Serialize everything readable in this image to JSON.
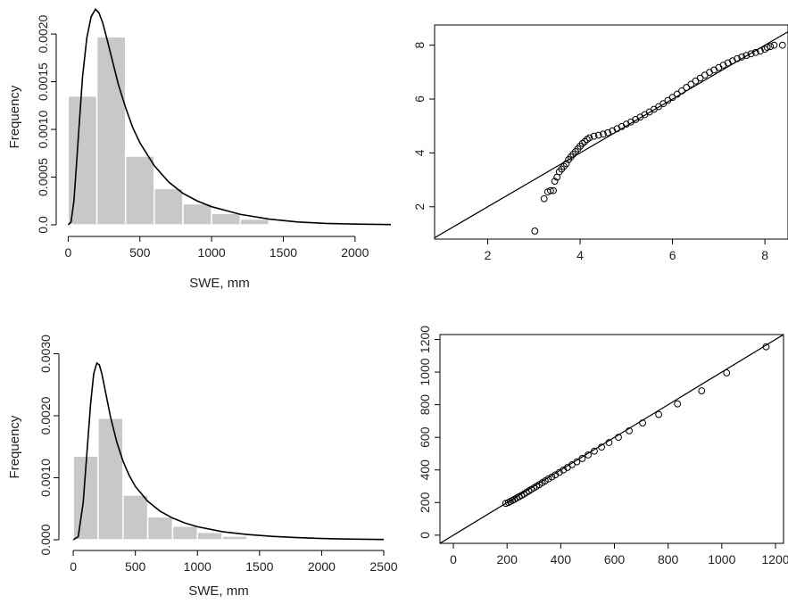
{
  "chart_data": [
    {
      "type": "bar",
      "panel": "top-left",
      "xlabel": "SWE, mm",
      "ylabel": "Frequency",
      "xlim": [
        -15,
        2250
      ],
      "ylim": [
        0,
        0.0023
      ],
      "xticks": [
        0,
        500,
        1000,
        1500,
        2000
      ],
      "yticks": [
        0.0,
        0.0005,
        0.001,
        0.0015,
        0.002
      ],
      "ytick_labels": [
        "0.0",
        "0.0005",
        "0.0010",
        "0.0015",
        "0.0020"
      ],
      "bins": [
        [
          0,
          200
        ],
        [
          200,
          400
        ],
        [
          400,
          600
        ],
        [
          600,
          800
        ],
        [
          800,
          1000
        ],
        [
          1000,
          1200
        ],
        [
          1200,
          1400
        ]
      ],
      "values": [
        0.00135,
        0.00197,
        0.00072,
        0.00038,
        0.00022,
        0.00012,
        6e-05
      ],
      "bar_color": "#c8c8c8",
      "curve": {
        "x": [
          0,
          20,
          40,
          60,
          80,
          100,
          130,
          160,
          190,
          215,
          240,
          270,
          300,
          350,
          400,
          450,
          500,
          600,
          700,
          800,
          900,
          1000,
          1200,
          1400,
          1600,
          1800,
          2000,
          2250
        ],
        "y": [
          0.0,
          3e-05,
          0.00025,
          0.00068,
          0.00112,
          0.00155,
          0.00196,
          0.00218,
          0.00226,
          0.00222,
          0.00212,
          0.00195,
          0.00177,
          0.00147,
          0.00123,
          0.00102,
          0.00086,
          0.00062,
          0.00045,
          0.00033,
          0.00025,
          0.00019,
          0.00011,
          6e-05,
          3e-05,
          1.5e-05,
          8e-06,
          3e-06
        ]
      }
    },
    {
      "type": "scatter",
      "panel": "top-right",
      "xlim": [
        0.85,
        8.5
      ],
      "ylim": [
        0.8,
        8.75
      ],
      "xticks": [
        2,
        4,
        6,
        8
      ],
      "yticks": [
        2,
        4,
        6,
        8
      ],
      "ref_line": [
        [
          0.85,
          0.85
        ],
        [
          8.6,
          8.6
        ]
      ],
      "points": [
        [
          3.02,
          1.1
        ],
        [
          3.22,
          2.3
        ],
        [
          3.3,
          2.55
        ],
        [
          3.36,
          2.6
        ],
        [
          3.42,
          2.6
        ],
        [
          3.45,
          2.95
        ],
        [
          3.5,
          3.1
        ],
        [
          3.55,
          3.3
        ],
        [
          3.6,
          3.4
        ],
        [
          3.65,
          3.5
        ],
        [
          3.7,
          3.6
        ],
        [
          3.75,
          3.75
        ],
        [
          3.8,
          3.85
        ],
        [
          3.85,
          3.95
        ],
        [
          3.9,
          4.05
        ],
        [
          3.95,
          4.15
        ],
        [
          4.0,
          4.25
        ],
        [
          4.05,
          4.35
        ],
        [
          4.1,
          4.42
        ],
        [
          4.15,
          4.5
        ],
        [
          4.2,
          4.56
        ],
        [
          4.3,
          4.62
        ],
        [
          4.4,
          4.66
        ],
        [
          4.5,
          4.7
        ],
        [
          4.6,
          4.75
        ],
        [
          4.7,
          4.82
        ],
        [
          4.8,
          4.9
        ],
        [
          4.9,
          4.98
        ],
        [
          5.0,
          5.07
        ],
        [
          5.1,
          5.15
        ],
        [
          5.2,
          5.24
        ],
        [
          5.3,
          5.33
        ],
        [
          5.4,
          5.42
        ],
        [
          5.5,
          5.52
        ],
        [
          5.6,
          5.62
        ],
        [
          5.7,
          5.72
        ],
        [
          5.8,
          5.83
        ],
        [
          5.9,
          5.95
        ],
        [
          6.0,
          6.06
        ],
        [
          6.1,
          6.18
        ],
        [
          6.2,
          6.3
        ],
        [
          6.3,
          6.43
        ],
        [
          6.4,
          6.55
        ],
        [
          6.5,
          6.67
        ],
        [
          6.6,
          6.78
        ],
        [
          6.7,
          6.89
        ],
        [
          6.8,
          6.99
        ],
        [
          6.9,
          7.08
        ],
        [
          7.0,
          7.17
        ],
        [
          7.1,
          7.26
        ],
        [
          7.2,
          7.34
        ],
        [
          7.3,
          7.42
        ],
        [
          7.4,
          7.5
        ],
        [
          7.5,
          7.56
        ],
        [
          7.6,
          7.62
        ],
        [
          7.7,
          7.68
        ],
        [
          7.8,
          7.73
        ],
        [
          7.9,
          7.78
        ],
        [
          8.0,
          7.85
        ],
        [
          8.05,
          7.92
        ],
        [
          8.12,
          7.95
        ],
        [
          8.2,
          8.0
        ],
        [
          8.38,
          8.0
        ]
      ]
    },
    {
      "type": "bar",
      "panel": "bottom-left",
      "xlabel": "SWE, mm",
      "ylabel": "Frequency",
      "xlim": [
        -15,
        2500
      ],
      "ylim": [
        0,
        0.00305
      ],
      "xticks": [
        0,
        500,
        1000,
        1500,
        2000,
        2500
      ],
      "yticks": [
        0.0,
        0.001,
        0.002,
        0.003
      ],
      "ytick_labels": [
        "0.000",
        "0.0010",
        "0.0020",
        "0.0030"
      ],
      "bins": [
        [
          0,
          200
        ],
        [
          200,
          400
        ],
        [
          400,
          600
        ],
        [
          600,
          800
        ],
        [
          800,
          1000
        ],
        [
          1000,
          1200
        ],
        [
          1200,
          1400
        ]
      ],
      "values": [
        0.00135,
        0.00196,
        0.00072,
        0.00037,
        0.00022,
        0.00012,
        6e-05
      ],
      "bar_color": "#c8c8c8",
      "curve": {
        "x": [
          0,
          40,
          80,
          110,
          140,
          165,
          190,
          210,
          230,
          260,
          300,
          350,
          400,
          450,
          500,
          600,
          700,
          800,
          900,
          1000,
          1200,
          1400,
          1600,
          1800,
          2000,
          2200,
          2500
        ],
        "y": [
          0.0,
          5e-05,
          0.0006,
          0.0014,
          0.0022,
          0.00268,
          0.00285,
          0.00282,
          0.00268,
          0.00238,
          0.00198,
          0.00158,
          0.00127,
          0.00104,
          0.00086,
          0.00062,
          0.00046,
          0.00035,
          0.00027,
          0.00021,
          0.00013,
          8.5e-05,
          5.5e-05,
          3.5e-05,
          2e-05,
          1.2e-05,
          5e-06
        ]
      }
    },
    {
      "type": "scatter",
      "panel": "bottom-right",
      "xlim": [
        -50,
        1230
      ],
      "ylim": [
        -50,
        1230
      ],
      "xticks": [
        0,
        200,
        400,
        600,
        800,
        1000,
        1200
      ],
      "yticks": [
        0,
        200,
        400,
        600,
        800,
        1000,
        1200
      ],
      "ref_line": [
        [
          -50,
          -50
        ],
        [
          1230,
          1230
        ]
      ],
      "points": [
        [
          195,
          195
        ],
        [
          205,
          200
        ],
        [
          212,
          207
        ],
        [
          220,
          213
        ],
        [
          228,
          220
        ],
        [
          236,
          228
        ],
        [
          245,
          236
        ],
        [
          254,
          244
        ],
        [
          263,
          252
        ],
        [
          272,
          262
        ],
        [
          281,
          271
        ],
        [
          290,
          280
        ],
        [
          300,
          290
        ],
        [
          310,
          300
        ],
        [
          320,
          310
        ],
        [
          331,
          322
        ],
        [
          342,
          333
        ],
        [
          354,
          345
        ],
        [
          367,
          357
        ],
        [
          380,
          370
        ],
        [
          395,
          385
        ],
        [
          410,
          400
        ],
        [
          425,
          415
        ],
        [
          442,
          432
        ],
        [
          460,
          450
        ],
        [
          480,
          470
        ],
        [
          502,
          492
        ],
        [
          525,
          515
        ],
        [
          552,
          540
        ],
        [
          580,
          568
        ],
        [
          615,
          600
        ],
        [
          655,
          640
        ],
        [
          705,
          688
        ],
        [
          765,
          740
        ],
        [
          835,
          805
        ],
        [
          925,
          885
        ],
        [
          1018,
          995
        ],
        [
          1165,
          1155
        ]
      ]
    }
  ]
}
